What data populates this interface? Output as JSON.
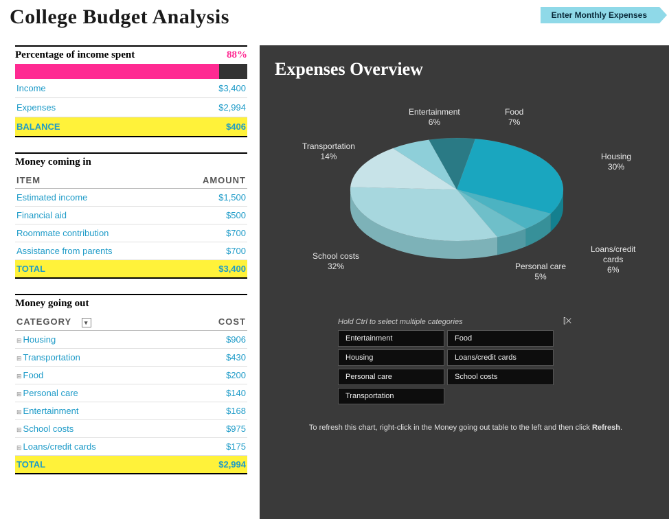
{
  "title": "College Budget Analysis",
  "enter_button": "Enter  Monthly  Expenses",
  "percent_spent": {
    "label": "Percentage of income spent",
    "value_pct": 88,
    "value_text": "88%",
    "bar_color": "#ff2a92",
    "track_color": "#333333"
  },
  "summary": {
    "income_label": "Income",
    "income_value": "$3,400",
    "expenses_label": "Expenses",
    "expenses_value": "$2,994",
    "balance_label": "BALANCE",
    "balance_value": "$406"
  },
  "money_in": {
    "heading": "Money coming in",
    "col_item": "ITEM",
    "col_amount": "AMOUNT",
    "rows": [
      {
        "item": "Estimated income",
        "amount": "$1,500"
      },
      {
        "item": "Financial aid",
        "amount": "$500"
      },
      {
        "item": "Roommate contribution",
        "amount": "$700"
      },
      {
        "item": "Assistance from parents",
        "amount": "$700"
      }
    ],
    "total_label": "TOTAL",
    "total_value": "$3,400"
  },
  "money_out": {
    "heading": "Money going out",
    "col_category": "CATEGORY",
    "col_cost": "COST",
    "rows": [
      {
        "category": "Housing",
        "cost": "$906"
      },
      {
        "category": "Transportation",
        "cost": "$430"
      },
      {
        "category": "Food",
        "cost": "$200"
      },
      {
        "category": "Personal care",
        "cost": "$140"
      },
      {
        "category": "Entertainment",
        "cost": "$168"
      },
      {
        "category": "School costs",
        "cost": "$975"
      },
      {
        "category": "Loans/credit cards",
        "cost": "$175"
      }
    ],
    "total_label": "TOTAL",
    "total_value": "$2,994"
  },
  "chart": {
    "title": "Expenses Overview",
    "type": "pie-3d",
    "background": "#3a3a3a",
    "slices": [
      {
        "label": "Housing",
        "pct": 30,
        "color": "#1aa6bf",
        "side": "#14808f"
      },
      {
        "label": "Loans/credit\ncards",
        "pct": 6,
        "color": "#4cb3c2",
        "side": "#379099"
      },
      {
        "label": "Personal  care",
        "pct": 5,
        "color": "#6fbfc9",
        "side": "#529aa3"
      },
      {
        "label": "School costs",
        "pct": 32,
        "color": "#a7d7de",
        "side": "#7db2b8"
      },
      {
        "label": "Transportation",
        "pct": 14,
        "color": "#c7e3e8",
        "side": "#9bc0c6"
      },
      {
        "label": "Entertainment",
        "pct": 6,
        "color": "#8ecfd9",
        "side": "#6da8b0"
      },
      {
        "label": "Food",
        "pct": 7,
        "color": "#2a7a85",
        "side": "#1f5a62"
      }
    ],
    "label_font": 12,
    "label_color": "#e8e8e8",
    "start_angle_deg": -80
  },
  "filters": {
    "hint": "Hold Ctrl to select multiple categories",
    "clear_icon": "⌧",
    "items": [
      "Entertainment",
      "Food",
      "Housing",
      "Loans/credit cards",
      "Personal care",
      "School costs",
      "Transportation"
    ]
  },
  "refresh_note": {
    "pre": "To refresh this chart, right-click in the Money going out table to the left and then click ",
    "bold": "Refresh",
    "post": "."
  },
  "highlight_color": "#fff23a",
  "link_color": "#1e9bc8"
}
